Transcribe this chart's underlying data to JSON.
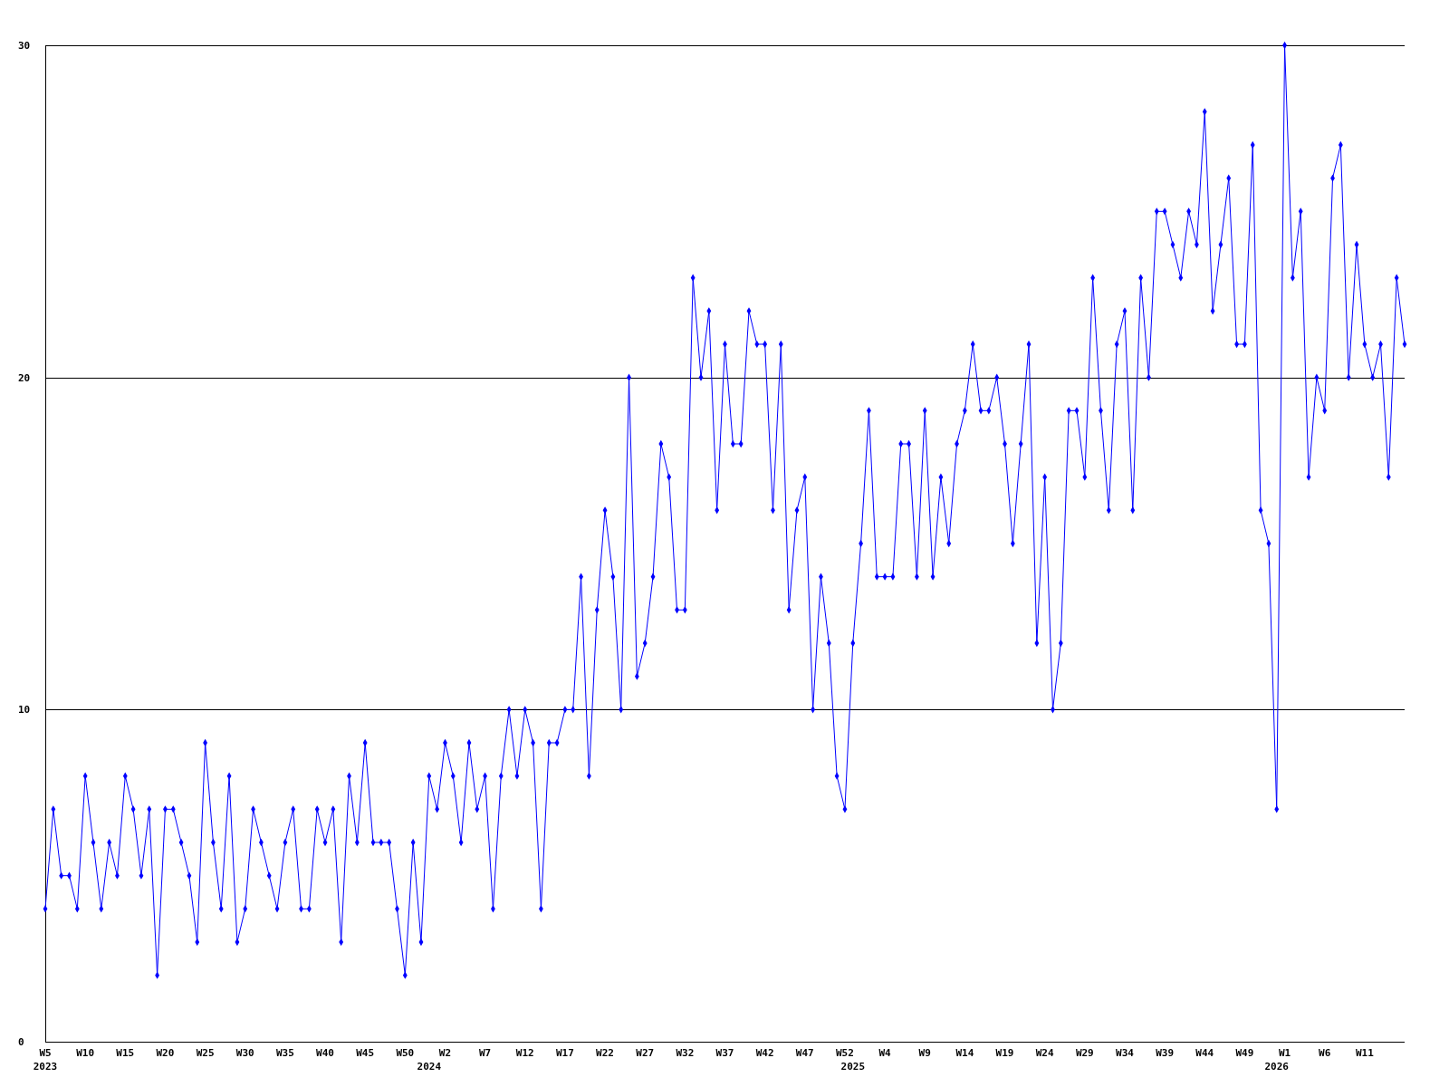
{
  "chart_data": {
    "type": "line",
    "categories": [
      "W5\n2023",
      null,
      null,
      null,
      null,
      "W10",
      null,
      null,
      null,
      null,
      "W15",
      null,
      null,
      null,
      null,
      "W20",
      null,
      null,
      null,
      null,
      "W25",
      null,
      null,
      null,
      null,
      "W30",
      null,
      null,
      null,
      null,
      "W35",
      null,
      null,
      null,
      null,
      "W40",
      null,
      null,
      null,
      null,
      "W45",
      null,
      null,
      null,
      null,
      "W50",
      null,
      null,
      "\n2024",
      null,
      "W2",
      null,
      null,
      null,
      null,
      "W7",
      null,
      null,
      null,
      null,
      "W12",
      null,
      null,
      null,
      null,
      "W17",
      null,
      null,
      null,
      null,
      "W22",
      null,
      null,
      null,
      null,
      "W27",
      null,
      null,
      null,
      null,
      "W32",
      null,
      null,
      null,
      null,
      "W37",
      null,
      null,
      null,
      null,
      "W42",
      null,
      null,
      null,
      null,
      "W47",
      null,
      null,
      null,
      null,
      "W52",
      "\n2025",
      null,
      null,
      null,
      "W4",
      null,
      null,
      null,
      null,
      "W9",
      null,
      null,
      null,
      null,
      "W14",
      null,
      null,
      null,
      null,
      "W19",
      null,
      null,
      null,
      null,
      "W24",
      null,
      null,
      null,
      null,
      "W29",
      null,
      null,
      null,
      null,
      "W34",
      null,
      null,
      null,
      null,
      "W39",
      null,
      null,
      null,
      null,
      "W44",
      null,
      null,
      null,
      null,
      "W49",
      null,
      null,
      null,
      "\n2026",
      "W1",
      null,
      null,
      null,
      null,
      "W6",
      null,
      null,
      null,
      null,
      "W11",
      null,
      null,
      null,
      null,
      null
    ],
    "series": [
      {
        "color": "#0000ff",
        "values": [
          4,
          7,
          5,
          5,
          4,
          8,
          6,
          4,
          6,
          5,
          8,
          7,
          5,
          7,
          2,
          7,
          7,
          6,
          5,
          3,
          9,
          6,
          4,
          8,
          3,
          4,
          7,
          6,
          5,
          4,
          6,
          7,
          4,
          4,
          7,
          6,
          7,
          3,
          8,
          6,
          9,
          6,
          6,
          6,
          4,
          2,
          6,
          3,
          8,
          7,
          9,
          8,
          6,
          9,
          7,
          8,
          4,
          8,
          10,
          8,
          10,
          9,
          4,
          9,
          9,
          10,
          10,
          14,
          8,
          13,
          16,
          14,
          10,
          20,
          11,
          12,
          14,
          18,
          17,
          13,
          13,
          23,
          20,
          22,
          16,
          21,
          18,
          18,
          22,
          21,
          21,
          16,
          21,
          13,
          16,
          17,
          10,
          14,
          12,
          8,
          7,
          12,
          15,
          19,
          14,
          14,
          14,
          18,
          18,
          14,
          19,
          14,
          17,
          15,
          18,
          19,
          21,
          19,
          19,
          20,
          18,
          15,
          18,
          21,
          12,
          17,
          10,
          12,
          19,
          19,
          17,
          23,
          19,
          16,
          21,
          22,
          16,
          23,
          20,
          25,
          25,
          24,
          23,
          25,
          24,
          28,
          22,
          24,
          26,
          21,
          21,
          27,
          16,
          15,
          7,
          30,
          23,
          25,
          17,
          20,
          19,
          26,
          27,
          20,
          24,
          21,
          20,
          21,
          17,
          23,
          21
        ]
      }
    ],
    "ylim": [
      0,
      30
    ],
    "yticks": [
      0,
      10,
      20,
      30
    ],
    "grid": "y",
    "marker": "diamond"
  }
}
